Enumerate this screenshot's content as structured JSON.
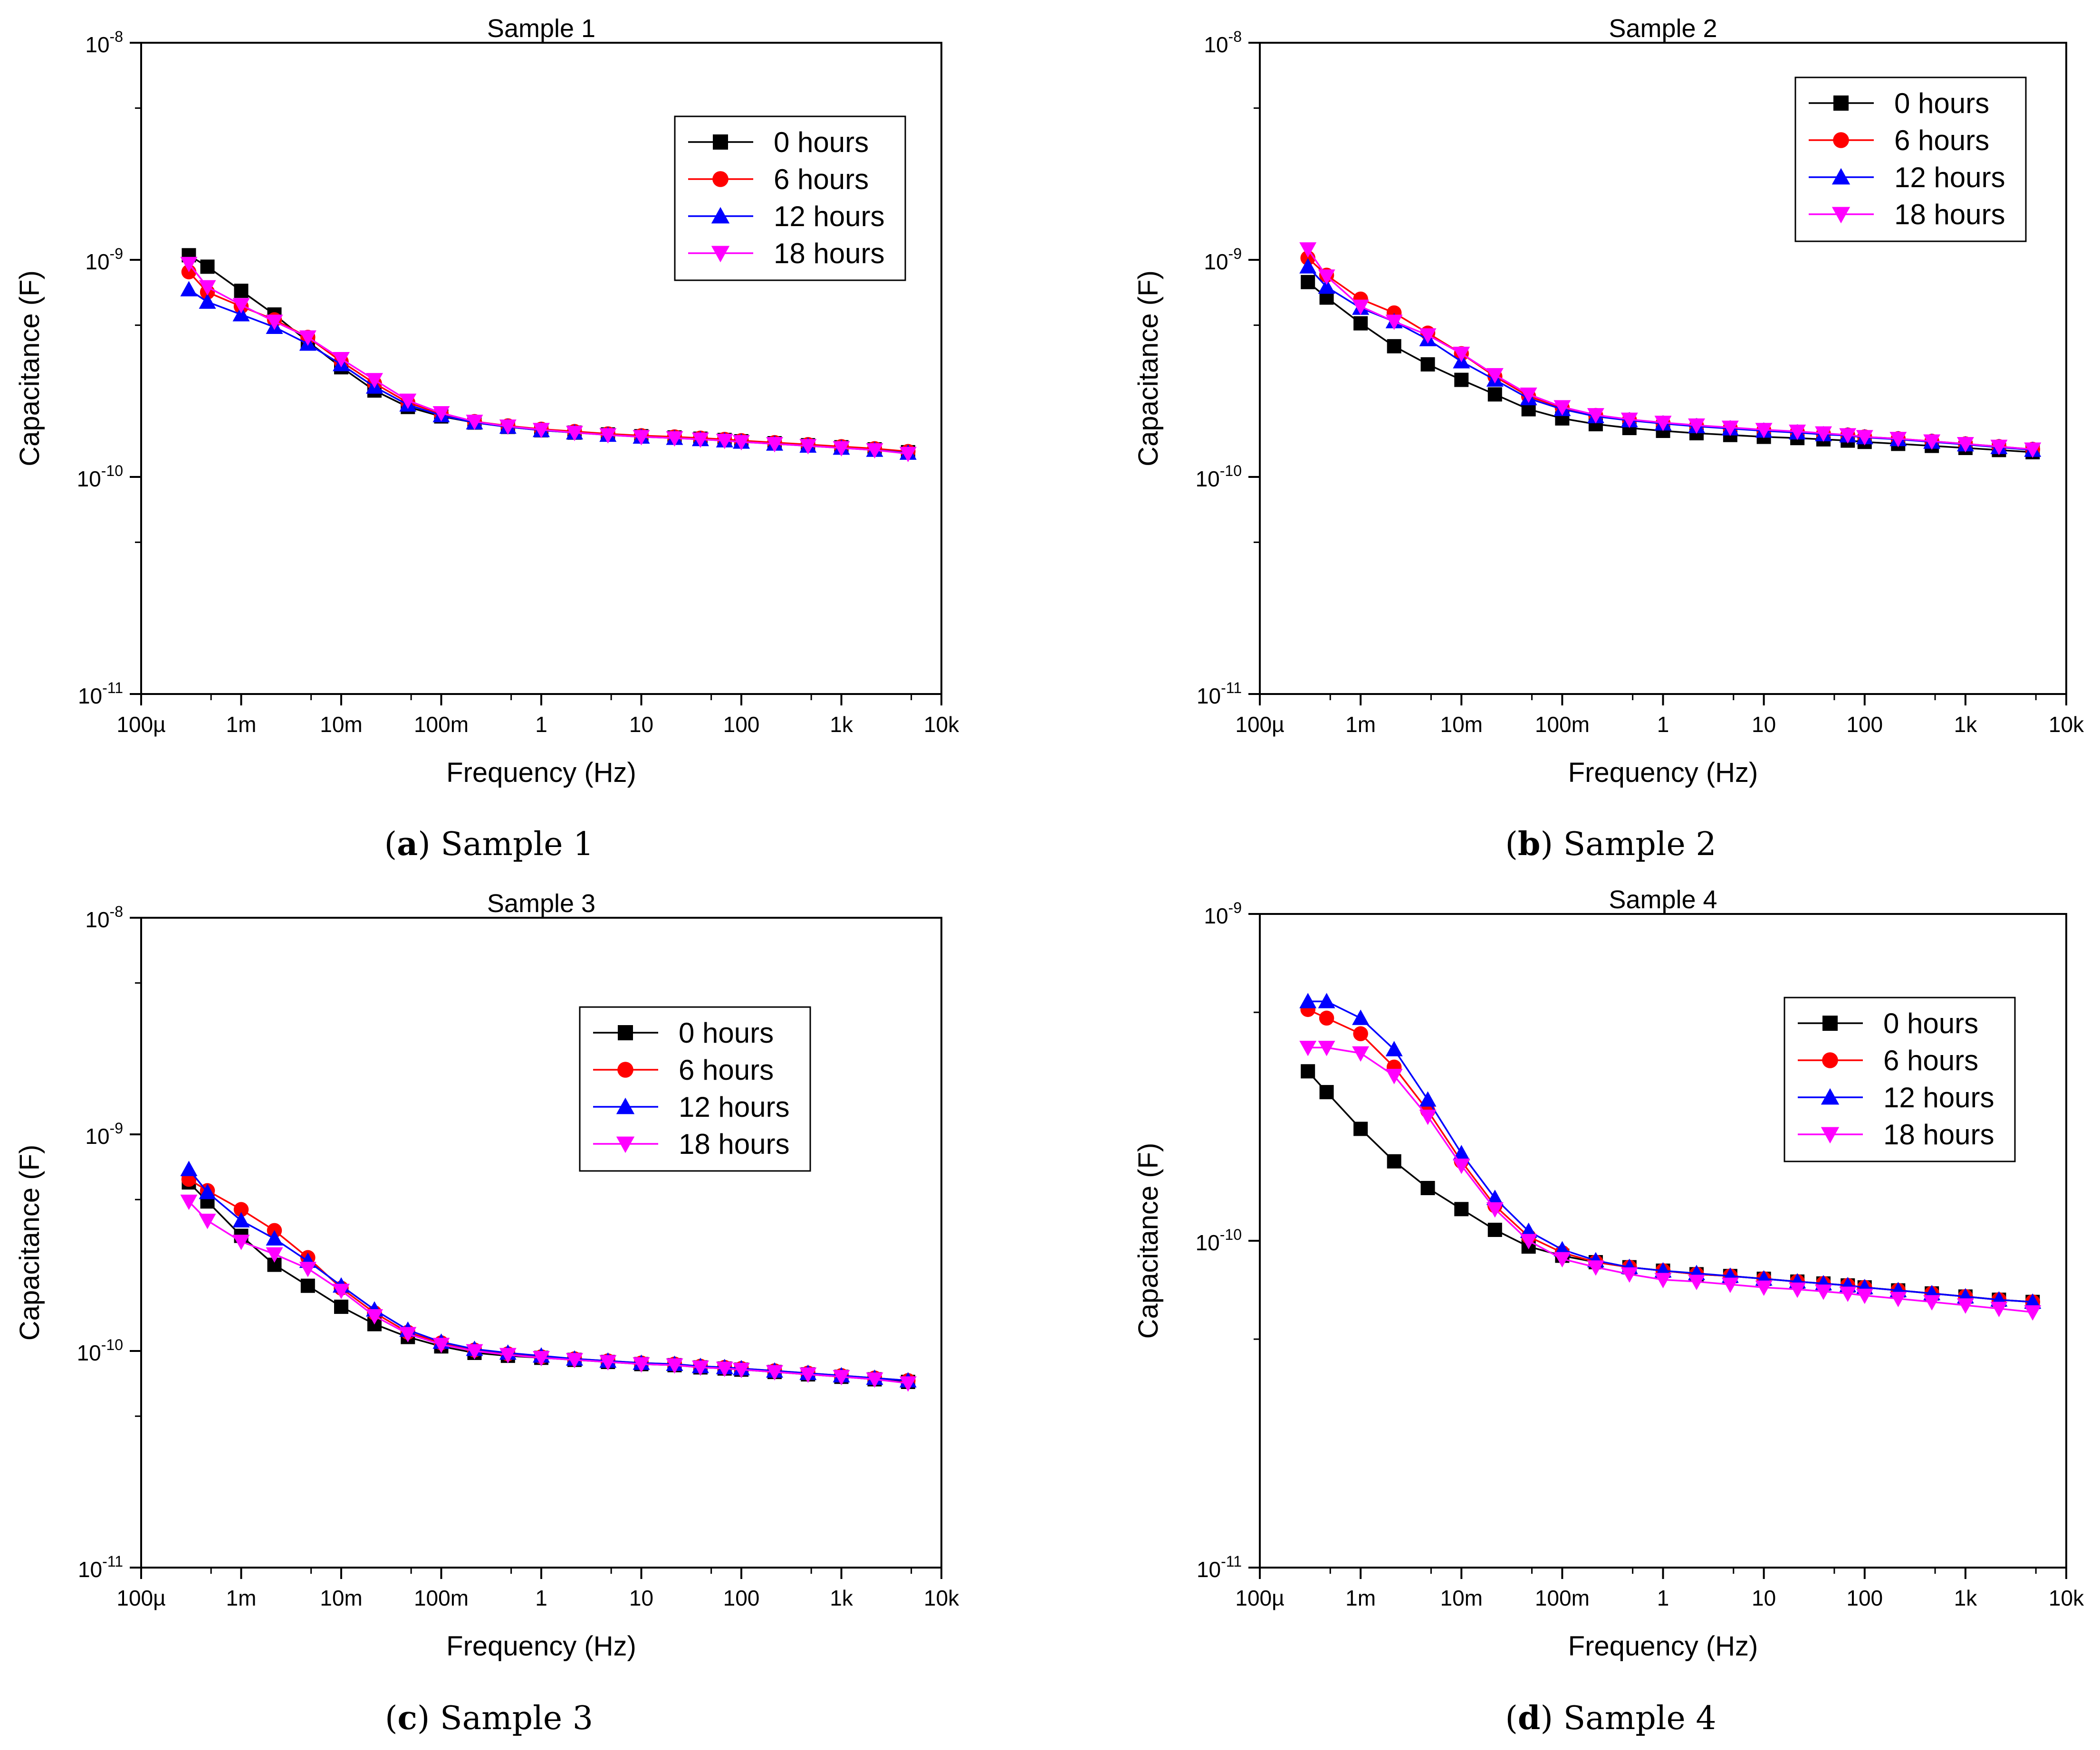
{
  "figure": {
    "captions": [
      {
        "letter": "a",
        "text": " Sample 1"
      },
      {
        "letter": "b",
        "text": " Sample 2"
      },
      {
        "letter": "c",
        "text": " Sample 3"
      },
      {
        "letter": "d",
        "text": " Sample 4"
      }
    ]
  },
  "series_colors": [
    "#000000",
    "#ff0000",
    "#0000ff",
    "#ff00ff"
  ],
  "series_markers": [
    "square",
    "circle",
    "triangle-up",
    "triangle-down"
  ],
  "x_tick_labels": [
    "100µ",
    "1m",
    "10m",
    "100m",
    "1",
    "10",
    "100",
    "1k",
    "10k"
  ],
  "chart_data": [
    {
      "type": "line",
      "title": "Sample 1",
      "xlabel": "Frequency (Hz)",
      "ylabel": "Capacitance (F)",
      "xscale": "log",
      "yscale": "log",
      "xlim": [
        0.0001,
        10000
      ],
      "ylim": [
        1e-11,
        1e-08
      ],
      "y_ticks": [
        1e-11,
        1e-10,
        1e-09,
        1e-08
      ],
      "y_tick_labels": [
        {
          "base": "10",
          "exp": "-11"
        },
        {
          "base": "10",
          "exp": "-10"
        },
        {
          "base": "10",
          "exp": "-9"
        },
        {
          "base": "10",
          "exp": "-8"
        }
      ],
      "legend_position": "top-right",
      "x": [
        0.0003,
        0.00046,
        0.001,
        0.00215,
        0.00464,
        0.01,
        0.0215,
        0.0464,
        0.1,
        0.215,
        0.464,
        1,
        2.15,
        4.64,
        10,
        21.5,
        39,
        68,
        100,
        215,
        464,
        1000,
        2150,
        4640
      ],
      "series": [
        {
          "name": "0 hours",
          "values": [
            1.05e-09,
            9.3e-10,
            7.2e-10,
            5.6e-10,
            4.2e-10,
            3.2e-10,
            2.5e-10,
            2.1e-10,
            1.9e-10,
            1.78e-10,
            1.7e-10,
            1.64e-10,
            1.6e-10,
            1.57e-10,
            1.54e-10,
            1.52e-10,
            1.5e-10,
            1.48e-10,
            1.46e-10,
            1.43e-10,
            1.4e-10,
            1.37e-10,
            1.34e-10,
            1.3e-10
          ]
        },
        {
          "name": "6 hours",
          "values": [
            8.8e-10,
            7.1e-10,
            6.1e-10,
            5.3e-10,
            4.4e-10,
            3.4e-10,
            2.7e-10,
            2.2e-10,
            1.95e-10,
            1.8e-10,
            1.72e-10,
            1.66e-10,
            1.62e-10,
            1.58e-10,
            1.55e-10,
            1.53e-10,
            1.51e-10,
            1.49e-10,
            1.47e-10,
            1.44e-10,
            1.41e-10,
            1.38e-10,
            1.35e-10,
            1.31e-10
          ]
        },
        {
          "name": "12 hours",
          "values": [
            7.3e-10,
            6.4e-10,
            5.6e-10,
            4.9e-10,
            4.1e-10,
            3.3e-10,
            2.6e-10,
            2.15e-10,
            1.92e-10,
            1.78e-10,
            1.7e-10,
            1.64e-10,
            1.6e-10,
            1.56e-10,
            1.53e-10,
            1.51e-10,
            1.49e-10,
            1.47e-10,
            1.45e-10,
            1.42e-10,
            1.39e-10,
            1.36e-10,
            1.33e-10,
            1.29e-10
          ]
        },
        {
          "name": "18 hours",
          "values": [
            9.6e-10,
            7.5e-10,
            6.2e-10,
            5.2e-10,
            4.4e-10,
            3.5e-10,
            2.8e-10,
            2.25e-10,
            1.97e-10,
            1.8e-10,
            1.71e-10,
            1.65e-10,
            1.6e-10,
            1.56e-10,
            1.53e-10,
            1.51e-10,
            1.49e-10,
            1.47e-10,
            1.45e-10,
            1.42e-10,
            1.39e-10,
            1.36e-10,
            1.33e-10,
            1.28e-10
          ]
        }
      ]
    },
    {
      "type": "line",
      "title": "Sample 2",
      "xlabel": "Frequency (Hz)",
      "ylabel": "Capacitance (F)",
      "xscale": "log",
      "yscale": "log",
      "xlim": [
        0.0001,
        10000
      ],
      "ylim": [
        1e-11,
        1e-08
      ],
      "y_ticks": [
        1e-11,
        1e-10,
        1e-09,
        1e-08
      ],
      "y_tick_labels": [
        {
          "base": "10",
          "exp": "-11"
        },
        {
          "base": "10",
          "exp": "-10"
        },
        {
          "base": "10",
          "exp": "-9"
        },
        {
          "base": "10",
          "exp": "-8"
        }
      ],
      "legend_position": "top-right",
      "x": [
        0.0003,
        0.00046,
        0.001,
        0.00215,
        0.00464,
        0.01,
        0.0215,
        0.0464,
        0.1,
        0.215,
        0.464,
        1,
        2.15,
        4.64,
        10,
        21.5,
        39,
        68,
        100,
        215,
        464,
        1000,
        2150,
        4640
      ],
      "series": [
        {
          "name": "0 hours",
          "values": [
            7.9e-10,
            6.7e-10,
            5.1e-10,
            4e-10,
            3.3e-10,
            2.8e-10,
            2.4e-10,
            2.05e-10,
            1.86e-10,
            1.75e-10,
            1.68e-10,
            1.63e-10,
            1.59e-10,
            1.56e-10,
            1.53e-10,
            1.51e-10,
            1.49e-10,
            1.47e-10,
            1.45e-10,
            1.42e-10,
            1.39e-10,
            1.36e-10,
            1.33e-10,
            1.3e-10
          ]
        },
        {
          "name": "6 hours",
          "values": [
            1.02e-09,
            8.5e-10,
            6.6e-10,
            5.7e-10,
            4.6e-10,
            3.7e-10,
            2.9e-10,
            2.35e-10,
            2.08e-10,
            1.92e-10,
            1.83e-10,
            1.77e-10,
            1.72e-10,
            1.68e-10,
            1.64e-10,
            1.61e-10,
            1.58e-10,
            1.56e-10,
            1.53e-10,
            1.5e-10,
            1.46e-10,
            1.42e-10,
            1.38e-10,
            1.34e-10
          ]
        },
        {
          "name": "12 hours",
          "values": [
            9.3e-10,
            7.5e-10,
            6e-10,
            5.2e-10,
            4.3e-10,
            3.4e-10,
            2.8e-10,
            2.3e-10,
            2.05e-10,
            1.9e-10,
            1.82e-10,
            1.76e-10,
            1.71e-10,
            1.67e-10,
            1.63e-10,
            1.6e-10,
            1.57e-10,
            1.55e-10,
            1.52e-10,
            1.49e-10,
            1.45e-10,
            1.41e-10,
            1.37e-10,
            1.33e-10
          ]
        },
        {
          "name": "18 hours",
          "values": [
            1.12e-09,
            8.4e-10,
            6.1e-10,
            5.2e-10,
            4.5e-10,
            3.7e-10,
            2.95e-10,
            2.4e-10,
            2.1e-10,
            1.93e-10,
            1.84e-10,
            1.78e-10,
            1.73e-10,
            1.69e-10,
            1.65e-10,
            1.62e-10,
            1.59e-10,
            1.56e-10,
            1.53e-10,
            1.5e-10,
            1.46e-10,
            1.42e-10,
            1.38e-10,
            1.34e-10
          ]
        }
      ]
    },
    {
      "type": "line",
      "title": "Sample 3",
      "xlabel": "Frequency (Hz)",
      "ylabel": "Capacitance (F)",
      "xscale": "log",
      "yscale": "log",
      "xlim": [
        0.0001,
        10000
      ],
      "ylim": [
        1e-11,
        1e-08
      ],
      "y_ticks": [
        1e-11,
        1e-10,
        1e-09,
        1e-08
      ],
      "y_tick_labels": [
        {
          "base": "10",
          "exp": "-11"
        },
        {
          "base": "10",
          "exp": "-10"
        },
        {
          "base": "10",
          "exp": "-9"
        },
        {
          "base": "10",
          "exp": "-8"
        }
      ],
      "legend_position": "center-right",
      "x": [
        0.0003,
        0.00046,
        0.001,
        0.00215,
        0.00464,
        0.01,
        0.0215,
        0.0464,
        0.1,
        0.215,
        0.464,
        1,
        2.15,
        4.64,
        10,
        21.5,
        39,
        68,
        100,
        215,
        464,
        1000,
        2150,
        4640
      ],
      "series": [
        {
          "name": "0 hours",
          "values": [
            6e-10,
            4.9e-10,
            3.4e-10,
            2.5e-10,
            2e-10,
            1.6e-10,
            1.33e-10,
            1.16e-10,
            1.05e-10,
            9.8e-11,
            9.5e-11,
            9.3e-11,
            9.1e-11,
            8.9e-11,
            8.7e-11,
            8.6e-11,
            8.4e-11,
            8.3e-11,
            8.2e-11,
            8e-11,
            7.8e-11,
            7.6e-11,
            7.4e-11,
            7.2e-11
          ]
        },
        {
          "name": "6 hours",
          "values": [
            6.2e-10,
            5.5e-10,
            4.5e-10,
            3.6e-10,
            2.7e-10,
            1.95e-10,
            1.5e-10,
            1.22e-10,
            1.09e-10,
            1.01e-10,
            9.7e-11,
            9.4e-11,
            9.2e-11,
            9e-11,
            8.8e-11,
            8.7e-11,
            8.5e-11,
            8.4e-11,
            8.3e-11,
            8.1e-11,
            7.9e-11,
            7.7e-11,
            7.5e-11,
            7.3e-11
          ]
        },
        {
          "name": "12 hours",
          "values": [
            6.9e-10,
            5.4e-10,
            4e-10,
            3.3e-10,
            2.6e-10,
            2e-10,
            1.55e-10,
            1.25e-10,
            1.1e-10,
            1.02e-10,
            9.8e-11,
            9.5e-11,
            9.2e-11,
            9e-11,
            8.8e-11,
            8.7e-11,
            8.5e-11,
            8.4e-11,
            8.3e-11,
            8.1e-11,
            7.9e-11,
            7.7e-11,
            7.5e-11,
            7.3e-11
          ]
        },
        {
          "name": "18 hours",
          "values": [
            4.9e-10,
            4e-10,
            3.2e-10,
            2.8e-10,
            2.4e-10,
            1.9e-10,
            1.45e-10,
            1.2e-10,
            1.07e-10,
            1e-10,
            9.6e-11,
            9.3e-11,
            9.1e-11,
            8.9e-11,
            8.7e-11,
            8.6e-11,
            8.4e-11,
            8.3e-11,
            8.2e-11,
            8e-11,
            7.8e-11,
            7.6e-11,
            7.4e-11,
            7.1e-11
          ]
        }
      ]
    },
    {
      "type": "line",
      "title": "Sample 4",
      "xlabel": "Frequency (Hz)",
      "ylabel": "Capacitance (F)",
      "xscale": "log",
      "yscale": "log",
      "xlim": [
        0.0001,
        10000
      ],
      "ylim": [
        1e-11,
        1e-09
      ],
      "y_ticks": [
        1e-11,
        1e-10,
        1e-09
      ],
      "y_tick_labels": [
        {
          "base": "10",
          "exp": "-11"
        },
        {
          "base": "10",
          "exp": "-10"
        },
        {
          "base": "10",
          "exp": "-9"
        }
      ],
      "legend_position": "top-right",
      "x": [
        0.0003,
        0.00046,
        0.001,
        0.00215,
        0.00464,
        0.01,
        0.0215,
        0.0464,
        0.1,
        0.215,
        0.464,
        1,
        2.15,
        4.64,
        10,
        21.5,
        39,
        68,
        100,
        215,
        464,
        1000,
        2150,
        4640
      ],
      "series": [
        {
          "name": "0 hours",
          "values": [
            3.3e-10,
            2.85e-10,
            2.2e-10,
            1.75e-10,
            1.45e-10,
            1.25e-10,
            1.08e-10,
            9.6e-11,
            9e-11,
            8.6e-11,
            8.3e-11,
            8.1e-11,
            7.9e-11,
            7.8e-11,
            7.65e-11,
            7.5e-11,
            7.4e-11,
            7.3e-11,
            7.2e-11,
            7.05e-11,
            6.9e-11,
            6.75e-11,
            6.6e-11,
            6.5e-11
          ]
        },
        {
          "name": "6 hours",
          "values": [
            5.1e-10,
            4.8e-10,
            4.3e-10,
            3.4e-10,
            2.5e-10,
            1.75e-10,
            1.28e-10,
            1.03e-10,
            9.2e-11,
            8.6e-11,
            8.3e-11,
            8.1e-11,
            7.9e-11,
            7.8e-11,
            7.65e-11,
            7.5e-11,
            7.4e-11,
            7.3e-11,
            7.2e-11,
            7.05e-11,
            6.9e-11,
            6.75e-11,
            6.6e-11,
            6.5e-11
          ]
        },
        {
          "name": "12 hours",
          "values": [
            5.4e-10,
            5.4e-10,
            4.8e-10,
            3.85e-10,
            2.7e-10,
            1.85e-10,
            1.35e-10,
            1.07e-10,
            9.4e-11,
            8.7e-11,
            8.3e-11,
            8.1e-11,
            7.95e-11,
            7.8e-11,
            7.65e-11,
            7.5e-11,
            7.4e-11,
            7.3e-11,
            7.2e-11,
            7.05e-11,
            6.9e-11,
            6.75e-11,
            6.6e-11,
            6.5e-11
          ]
        },
        {
          "name": "18 hours",
          "values": [
            3.9e-10,
            3.9e-10,
            3.75e-10,
            3.2e-10,
            2.4e-10,
            1.7e-10,
            1.25e-10,
            1e-10,
            8.8e-11,
            8.3e-11,
            7.9e-11,
            7.6e-11,
            7.5e-11,
            7.35e-11,
            7.2e-11,
            7.1e-11,
            7e-11,
            6.9e-11,
            6.8e-11,
            6.65e-11,
            6.5e-11,
            6.35e-11,
            6.2e-11,
            6.05e-11
          ]
        }
      ]
    }
  ]
}
